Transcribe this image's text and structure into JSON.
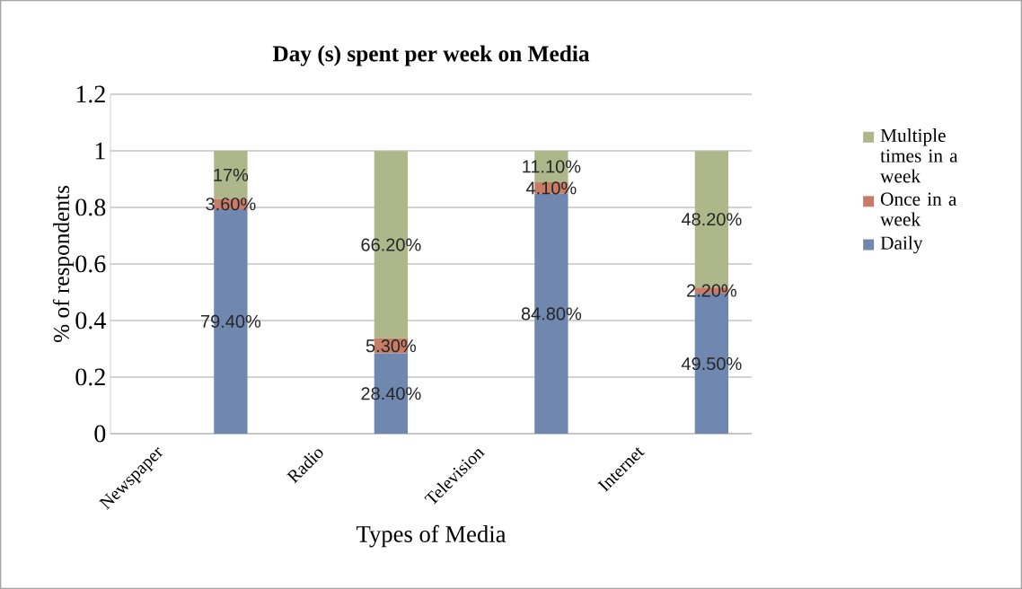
{
  "chart_data": {
    "type": "bar",
    "title": "Day (s) spent per week on Media",
    "xlabel": "Types of Media",
    "ylabel": "% of respondents",
    "categories": [
      "Newspaper",
      null,
      "Radio",
      null,
      "Television",
      null,
      "Internet",
      null
    ],
    "stacked": true,
    "series": [
      {
        "name": "Daily",
        "color": "#7088b0",
        "values": [
          null,
          0.794,
          null,
          0.284,
          null,
          0.848,
          null,
          0.495
        ],
        "value_labels": [
          null,
          "79.40%",
          null,
          "28.40%",
          null,
          "84.80%",
          null,
          "49.50%"
        ]
      },
      {
        "name": "Once in  a week",
        "color": "#c77c66",
        "values": [
          null,
          0.036,
          null,
          0.053,
          null,
          0.041,
          null,
          0.022
        ],
        "value_labels": [
          null,
          "3.60%",
          null,
          "5.30%",
          null,
          "4.10%",
          null,
          "2.20%"
        ]
      },
      {
        "name": "Multiple times in  a week",
        "color": "#adb78a",
        "values": [
          null,
          0.17,
          null,
          0.662,
          null,
          0.111,
          null,
          0.482
        ],
        "value_labels": [
          null,
          "17%",
          null,
          "66.20%",
          null,
          "11.10%",
          null,
          "48.20%"
        ]
      }
    ],
    "ylim": [
      0,
      1.2
    ],
    "yticks": [
      0,
      0.2,
      0.4,
      0.6,
      0.8,
      1,
      1.2
    ],
    "grid": "y",
    "legend": "right"
  }
}
